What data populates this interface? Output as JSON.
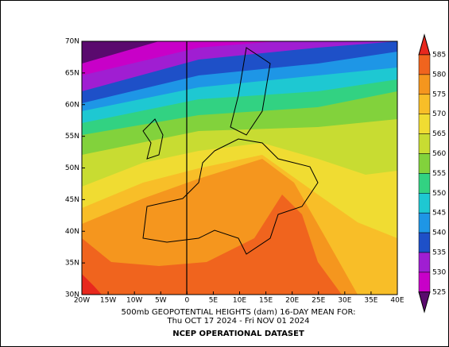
{
  "map": {
    "lat_labels": [
      "70N",
      "65N",
      "60N",
      "55N",
      "50N",
      "45N",
      "40N",
      "35N",
      "30N"
    ],
    "lon_labels": [
      "20W",
      "15W",
      "10W",
      "5W",
      "0",
      "5E",
      "10E",
      "15E",
      "20E",
      "25E",
      "30E",
      "35E",
      "40E"
    ],
    "colorbar": {
      "labels": [
        585,
        580,
        575,
        570,
        565,
        560,
        555,
        550,
        545,
        540,
        535,
        530,
        525
      ],
      "colors": [
        "#e8281e",
        "#f0641e",
        "#f5961e",
        "#f8be28",
        "#f0dc32",
        "#c8dc32",
        "#82d23c",
        "#32d282",
        "#1ec8d2",
        "#1e96e6",
        "#1e50c8",
        "#a01ed2",
        "#c800c8",
        "#5a0a6e"
      ]
    },
    "title": "500mb GEOPOTENTIAL HEIGHTS (dam)    16-DAY MEAN FOR:",
    "date_range": "Thu OCT 17 2024 - Fri NOV 01 2024",
    "source": "NCEP OPERATIONAL DATASET"
  }
}
